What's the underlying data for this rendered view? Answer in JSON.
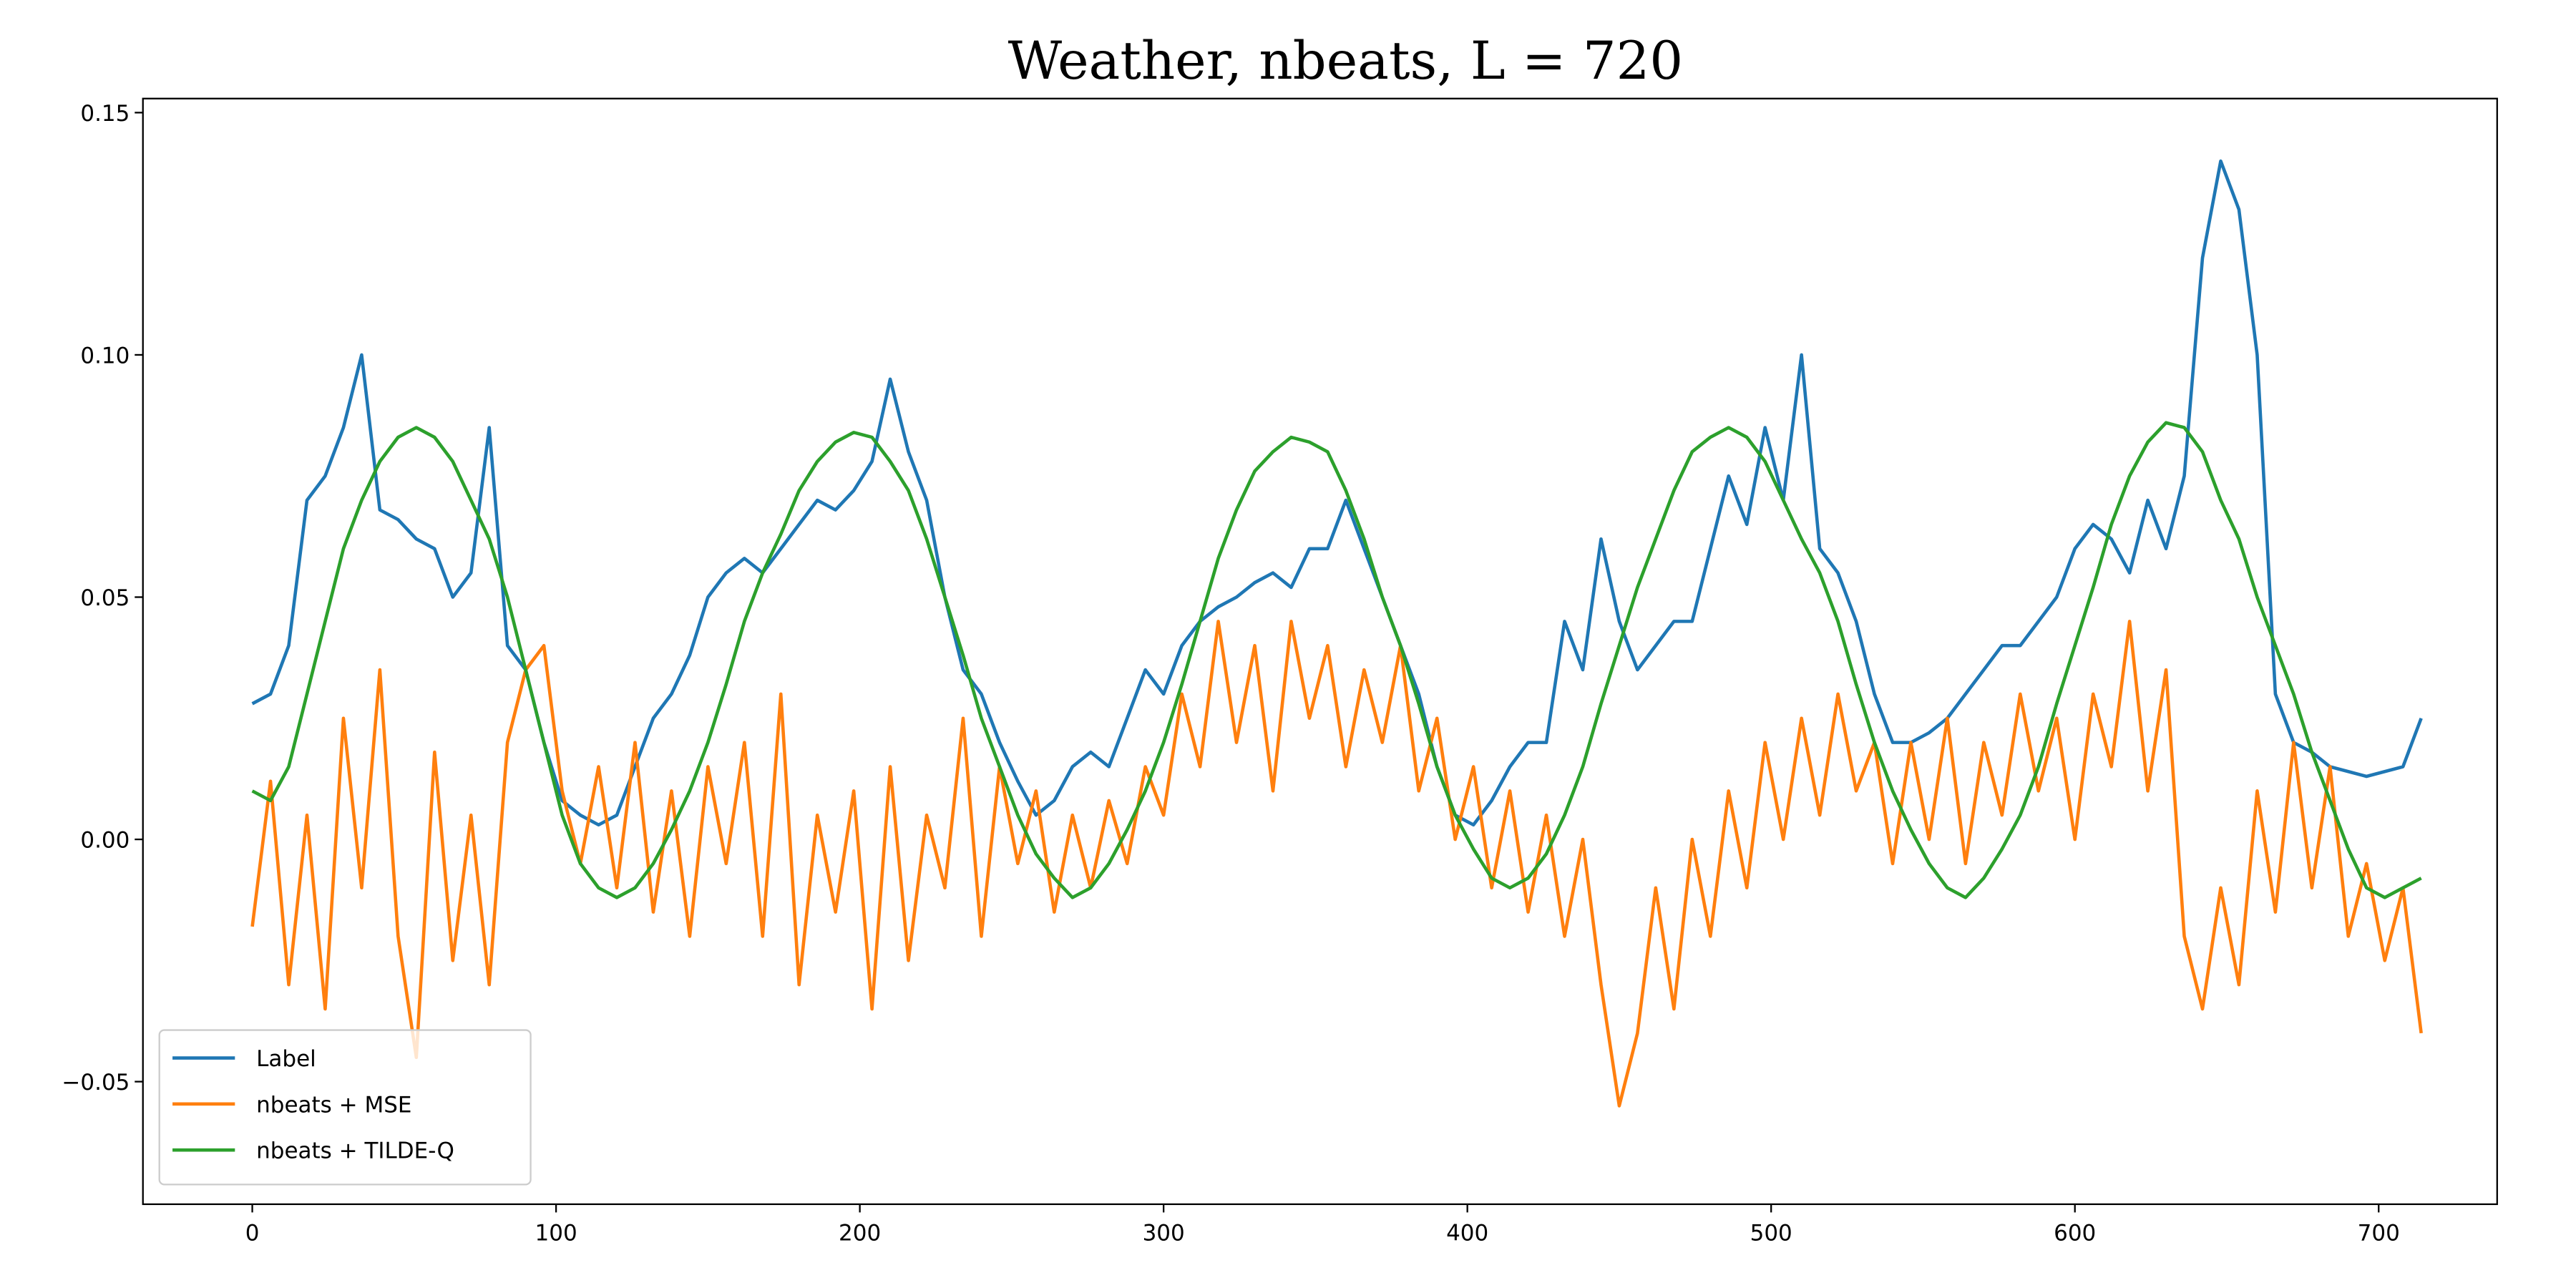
{
  "chart_data": {
    "type": "line",
    "title": "Weather, nbeats, L = 720",
    "xlim": [
      -36,
      739
    ],
    "ylim": [
      -0.0753,
      0.1529
    ],
    "xticks": [
      0,
      100,
      200,
      300,
      400,
      500,
      600,
      700
    ],
    "yticks": [
      {
        "value": -0.05,
        "label": "−0.05"
      },
      {
        "value": 0,
        "label": "0.00"
      },
      {
        "value": 0.05,
        "label": "0.05"
      },
      {
        "value": 0.1,
        "label": "0.10"
      },
      {
        "value": 0.15,
        "label": "0.15"
      }
    ],
    "grid": false,
    "legend": "lower left",
    "x": [
      0,
      6,
      12,
      18,
      24,
      30,
      36,
      42,
      48,
      54,
      60,
      66,
      72,
      78,
      84,
      90,
      96,
      102,
      108,
      114,
      120,
      126,
      132,
      138,
      144,
      150,
      156,
      162,
      168,
      174,
      180,
      186,
      192,
      198,
      204,
      210,
      216,
      222,
      228,
      234,
      240,
      246,
      252,
      258,
      264,
      270,
      276,
      282,
      288,
      294,
      300,
      306,
      312,
      318,
      324,
      330,
      336,
      342,
      348,
      354,
      360,
      366,
      372,
      378,
      384,
      390,
      396,
      402,
      408,
      414,
      420,
      426,
      432,
      438,
      444,
      450,
      456,
      462,
      468,
      474,
      480,
      486,
      492,
      498,
      504,
      510,
      516,
      522,
      528,
      534,
      540,
      546,
      552,
      558,
      564,
      570,
      576,
      582,
      588,
      594,
      600,
      606,
      612,
      618,
      624,
      630,
      636,
      642,
      648,
      654,
      660,
      666,
      672,
      678,
      684,
      690,
      696,
      702,
      708,
      714
    ],
    "series": [
      {
        "name": "Label",
        "color": "#1f77b4",
        "values": [
          0.028,
          0.03,
          0.04,
          0.07,
          0.075,
          0.085,
          0.1,
          0.068,
          0.066,
          0.062,
          0.06,
          0.05,
          0.055,
          0.085,
          0.04,
          0.035,
          0.02,
          0.008,
          0.005,
          0.003,
          0.005,
          0.015,
          0.025,
          0.03,
          0.038,
          0.05,
          0.055,
          0.058,
          0.055,
          0.06,
          0.065,
          0.07,
          0.068,
          0.072,
          0.078,
          0.095,
          0.08,
          0.07,
          0.05,
          0.035,
          0.03,
          0.02,
          0.012,
          0.005,
          0.008,
          0.015,
          0.018,
          0.015,
          0.025,
          0.035,
          0.03,
          0.04,
          0.045,
          0.048,
          0.05,
          0.053,
          0.055,
          0.052,
          0.06,
          0.06,
          0.07,
          0.06,
          0.05,
          0.04,
          0.03,
          0.015,
          0.005,
          0.003,
          0.008,
          0.015,
          0.02,
          0.02,
          0.045,
          0.035,
          0.062,
          0.045,
          0.035,
          0.04,
          0.045,
          0.045,
          0.06,
          0.075,
          0.065,
          0.085,
          0.07,
          0.1,
          0.06,
          0.055,
          0.045,
          0.03,
          0.02,
          0.02,
          0.022,
          0.025,
          0.03,
          0.035,
          0.04,
          0.04,
          0.045,
          0.05,
          0.06,
          0.065,
          0.062,
          0.055,
          0.07,
          0.06,
          0.075,
          0.12,
          0.14,
          0.13,
          0.1,
          0.03,
          0.02,
          0.018,
          0.015,
          0.014,
          0.013,
          0.014,
          0.015,
          0.025
        ]
      },
      {
        "name": "nbeats + MSE",
        "color": "#ff7f0e",
        "values": [
          -0.018,
          0.012,
          -0.03,
          0.005,
          -0.035,
          0.025,
          -0.01,
          0.035,
          -0.02,
          -0.045,
          0.018,
          -0.025,
          0.005,
          -0.03,
          0.02,
          0.035,
          0.04,
          0.01,
          -0.005,
          0.015,
          -0.01,
          0.02,
          -0.015,
          0.01,
          -0.02,
          0.015,
          -0.005,
          0.02,
          -0.02,
          0.03,
          -0.03,
          0.005,
          -0.015,
          0.01,
          -0.035,
          0.015,
          -0.025,
          0.005,
          -0.01,
          0.025,
          -0.02,
          0.015,
          -0.005,
          0.01,
          -0.015,
          0.005,
          -0.01,
          0.008,
          -0.005,
          0.015,
          0.005,
          0.03,
          0.015,
          0.045,
          0.02,
          0.04,
          0.01,
          0.045,
          0.025,
          0.04,
          0.015,
          0.035,
          0.02,
          0.04,
          0.01,
          0.025,
          0.0,
          0.015,
          -0.01,
          0.01,
          -0.015,
          0.005,
          -0.02,
          0.0,
          -0.03,
          -0.055,
          -0.04,
          -0.01,
          -0.035,
          0.0,
          -0.02,
          0.01,
          -0.01,
          0.02,
          0.0,
          0.025,
          0.005,
          0.03,
          0.01,
          0.02,
          -0.005,
          0.02,
          0.0,
          0.025,
          -0.005,
          0.02,
          0.005,
          0.03,
          0.01,
          0.025,
          0.0,
          0.03,
          0.015,
          0.045,
          0.01,
          0.035,
          -0.02,
          -0.035,
          -0.01,
          -0.03,
          0.01,
          -0.015,
          0.02,
          -0.01,
          0.015,
          -0.02,
          -0.005,
          -0.025,
          -0.01,
          -0.04
        ]
      },
      {
        "name": "nbeats + TILDE-Q",
        "color": "#2ca02c",
        "values": [
          0.01,
          0.008,
          0.015,
          0.03,
          0.045,
          0.06,
          0.07,
          0.078,
          0.083,
          0.085,
          0.083,
          0.078,
          0.07,
          0.062,
          0.05,
          0.035,
          0.02,
          0.005,
          -0.005,
          -0.01,
          -0.012,
          -0.01,
          -0.005,
          0.002,
          0.01,
          0.02,
          0.032,
          0.045,
          0.055,
          0.063,
          0.072,
          0.078,
          0.082,
          0.084,
          0.083,
          0.078,
          0.072,
          0.062,
          0.05,
          0.038,
          0.025,
          0.015,
          0.005,
          -0.003,
          -0.008,
          -0.012,
          -0.01,
          -0.005,
          0.002,
          0.01,
          0.02,
          0.032,
          0.045,
          0.058,
          0.068,
          0.076,
          0.08,
          0.083,
          0.082,
          0.08,
          0.072,
          0.062,
          0.05,
          0.04,
          0.028,
          0.015,
          0.005,
          -0.002,
          -0.008,
          -0.01,
          -0.008,
          -0.003,
          0.005,
          0.015,
          0.028,
          0.04,
          0.052,
          0.062,
          0.072,
          0.08,
          0.083,
          0.085,
          0.083,
          0.078,
          0.07,
          0.062,
          0.055,
          0.045,
          0.032,
          0.02,
          0.01,
          0.002,
          -0.005,
          -0.01,
          -0.012,
          -0.008,
          -0.002,
          0.005,
          0.015,
          0.028,
          0.04,
          0.052,
          0.065,
          0.075,
          0.082,
          0.086,
          0.085,
          0.08,
          0.07,
          0.062,
          0.05,
          0.04,
          0.03,
          0.018,
          0.008,
          -0.002,
          -0.01,
          -0.012,
          -0.01,
          -0.008
        ]
      }
    ]
  }
}
